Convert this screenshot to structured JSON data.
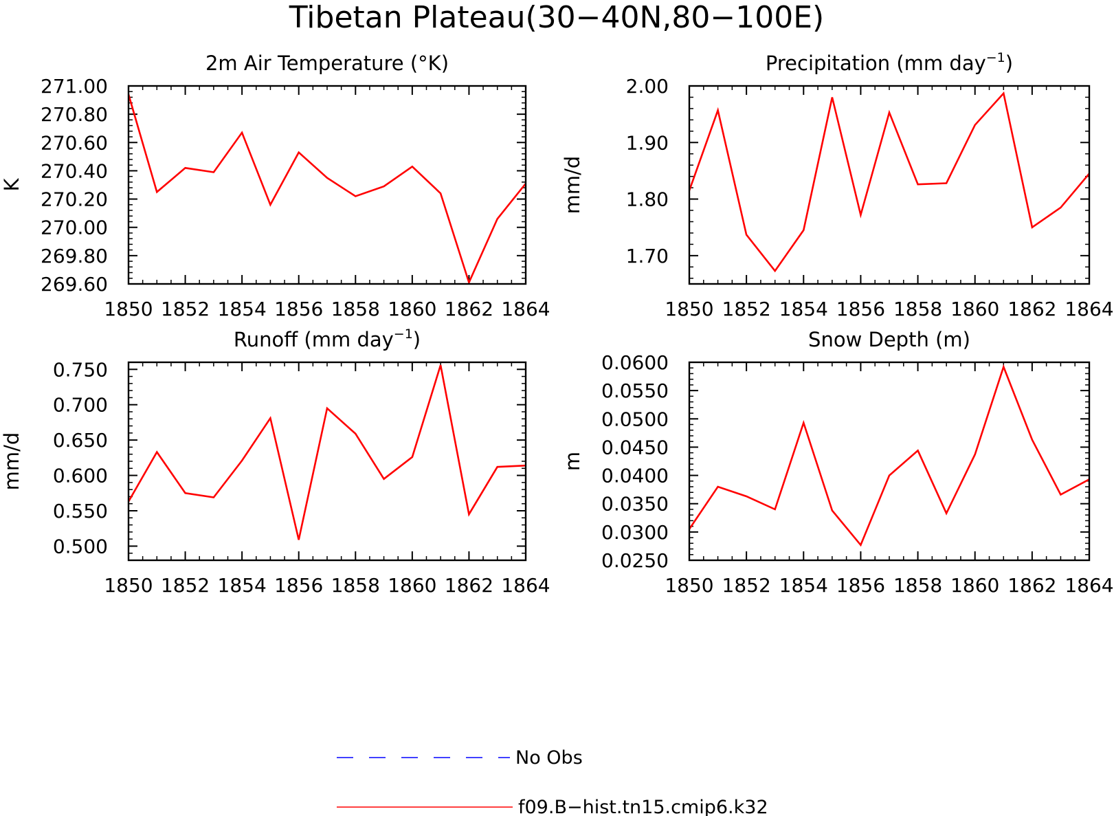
{
  "figure": {
    "title": "Tibetan Plateau(30−40N,80−100E)"
  },
  "legend": {
    "entries": [
      {
        "label": "No Obs",
        "color": "#0000ff",
        "style": "dashed"
      },
      {
        "label": "f09.B−hist.tn15.cmip6.k32",
        "color": "#ff0000",
        "style": "solid"
      }
    ]
  },
  "chart_data": [
    {
      "type": "line",
      "title": "2m Air Temperature (°K)",
      "title_sup": "",
      "title_tail": "",
      "xlabel": "",
      "ylabel": "K",
      "xlim": [
        1850,
        1864
      ],
      "ylim": [
        269.6,
        271.0
      ],
      "x_ticks": [
        "1850",
        "1852",
        "1854",
        "1856",
        "1858",
        "1860",
        "1862",
        "1864"
      ],
      "y_ticks": [
        "269.60",
        "269.80",
        "270.00",
        "270.20",
        "270.40",
        "270.60",
        "270.80",
        "271.00"
      ],
      "series": [
        {
          "color": "#ff0000",
          "x": [
            1850,
            1851,
            1852,
            1853,
            1854,
            1855,
            1856,
            1857,
            1858,
            1859,
            1860,
            1861,
            1862,
            1863,
            1864
          ],
          "values": [
            270.94,
            270.25,
            270.42,
            270.39,
            270.67,
            270.16,
            270.53,
            270.35,
            270.22,
            270.29,
            270.43,
            270.24,
            269.61,
            270.06,
            270.31
          ]
        }
      ]
    },
    {
      "type": "line",
      "title": "Precipitation (mm day",
      "title_sup": "−1",
      "title_tail": ")",
      "xlabel": "",
      "ylabel": "mm/d",
      "xlim": [
        1850,
        1864
      ],
      "ylim": [
        1.65,
        2.0
      ],
      "x_ticks": [
        "1850",
        "1852",
        "1854",
        "1856",
        "1858",
        "1860",
        "1862",
        "1864"
      ],
      "y_ticks": [
        "1.70",
        "1.80",
        "1.90",
        "2.00"
      ],
      "series": [
        {
          "color": "#ff0000",
          "x": [
            1850,
            1851,
            1852,
            1853,
            1854,
            1855,
            1856,
            1857,
            1858,
            1859,
            1860,
            1861,
            1862,
            1863,
            1864
          ],
          "values": [
            1.815,
            1.957,
            1.737,
            1.673,
            1.745,
            1.98,
            1.772,
            1.953,
            1.826,
            1.828,
            1.931,
            1.987,
            1.75,
            1.785,
            1.845
          ]
        }
      ]
    },
    {
      "type": "line",
      "title": "Runoff (mm day",
      "title_sup": "−1",
      "title_tail": ")",
      "xlabel": "",
      "ylabel": "mm/d",
      "xlim": [
        1850,
        1864
      ],
      "ylim": [
        0.48,
        0.76
      ],
      "x_ticks": [
        "1850",
        "1852",
        "1854",
        "1856",
        "1858",
        "1860",
        "1862",
        "1864"
      ],
      "y_ticks": [
        "0.500",
        "0.550",
        "0.600",
        "0.650",
        "0.700",
        "0.750"
      ],
      "series": [
        {
          "color": "#ff0000",
          "x": [
            1850,
            1851,
            1852,
            1853,
            1854,
            1855,
            1856,
            1857,
            1858,
            1859,
            1860,
            1861,
            1862,
            1863,
            1864
          ],
          "values": [
            0.563,
            0.633,
            0.575,
            0.569,
            0.621,
            0.681,
            0.509,
            0.695,
            0.659,
            0.595,
            0.626,
            0.756,
            0.545,
            0.612,
            0.614
          ]
        }
      ]
    },
    {
      "type": "line",
      "title": "Snow Depth (m)",
      "title_sup": "",
      "title_tail": "",
      "xlabel": "",
      "ylabel": "m",
      "xlim": [
        1850,
        1864
      ],
      "ylim": [
        0.025,
        0.06
      ],
      "x_ticks": [
        "1850",
        "1852",
        "1854",
        "1856",
        "1858",
        "1860",
        "1862",
        "1864"
      ],
      "y_ticks": [
        "0.0250",
        "0.0300",
        "0.0350",
        "0.0400",
        "0.0450",
        "0.0500",
        "0.0550",
        "0.0600"
      ],
      "series": [
        {
          "color": "#ff0000",
          "x": [
            1850,
            1851,
            1852,
            1853,
            1854,
            1855,
            1856,
            1857,
            1858,
            1859,
            1860,
            1861,
            1862,
            1863,
            1864
          ],
          "values": [
            0.0305,
            0.038,
            0.0363,
            0.034,
            0.0493,
            0.0338,
            0.0277,
            0.04,
            0.0444,
            0.0333,
            0.0437,
            0.0592,
            0.0463,
            0.0366,
            0.0393
          ]
        }
      ]
    }
  ]
}
